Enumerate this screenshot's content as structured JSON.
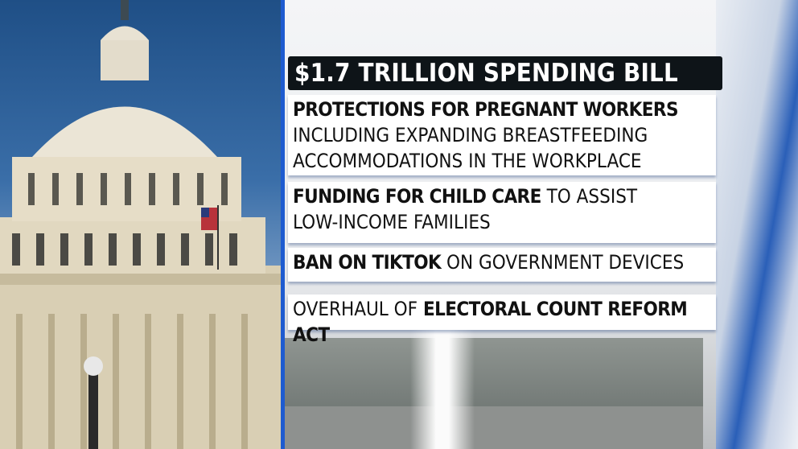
{
  "title": "$1.7 TRILLION SPENDING BILL",
  "items": [
    {
      "bold": "PROTECTIONS FOR PREGNANT WORKERS",
      "rest": "",
      "line2": "INCLUDING EXPANDING BREASTFEEDING",
      "line3": "ACCOMMODATIONS IN THE WORKPLACE"
    },
    {
      "bold": "FUNDING FOR CHILD CARE",
      "rest": " TO ASSIST",
      "line2": "LOW-INCOME FAMILIES"
    },
    {
      "bold": "BAN ON TIKTOK",
      "rest": " ON GOVERNMENT DEVICES"
    },
    {
      "pre": "OVERHAUL OF ",
      "bold": "ELECTORAL COUNT REFORM ACT"
    }
  ],
  "colors": {
    "accent": "#1e5bd0",
    "title_bg": "#0e1418"
  }
}
